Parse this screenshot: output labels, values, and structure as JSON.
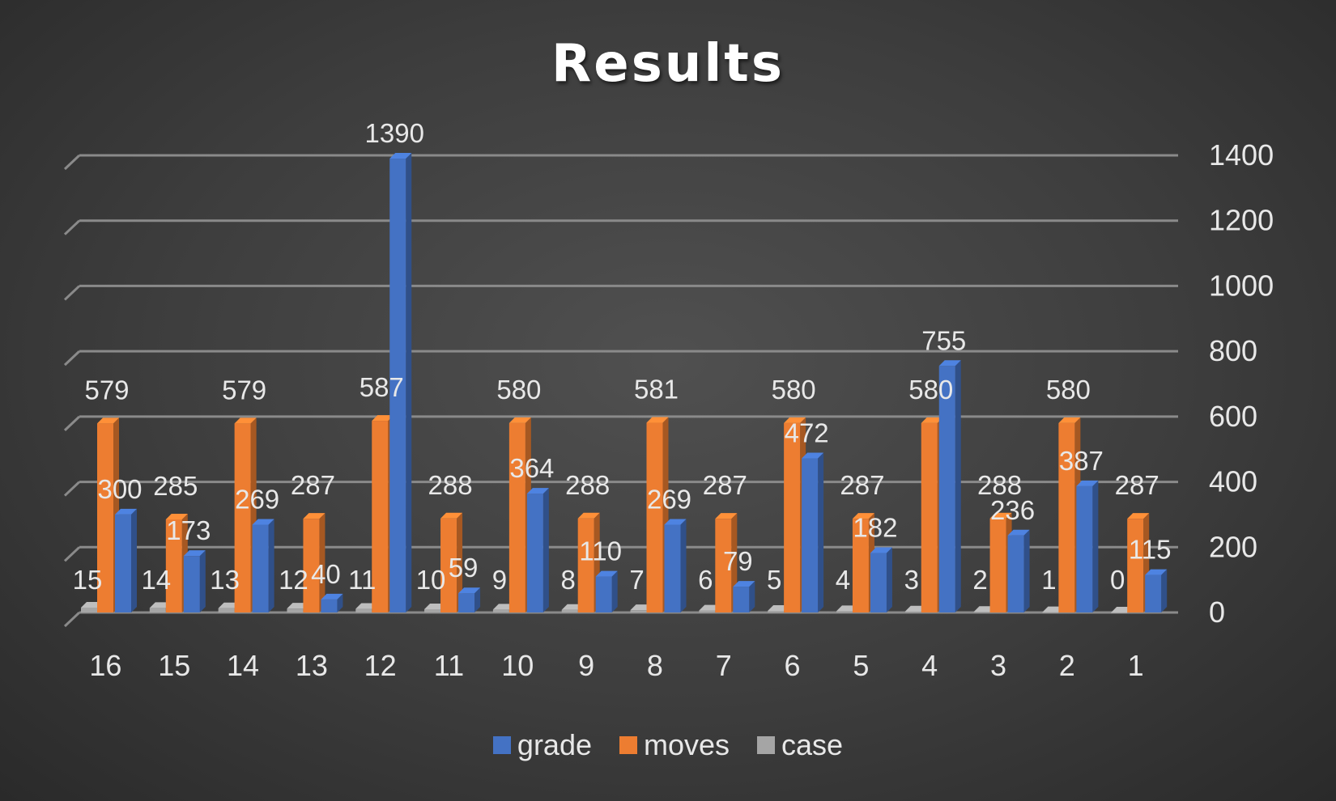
{
  "chart_data": {
    "type": "bar",
    "title": "Results",
    "xlabel": "",
    "ylabel": "",
    "ylim": [
      0,
      1400
    ],
    "yticks": [
      0,
      200,
      400,
      600,
      800,
      1000,
      1200,
      1400
    ],
    "grid": true,
    "legend_position": "bottom",
    "categories": [
      "16",
      "15",
      "14",
      "13",
      "12",
      "11",
      "10",
      "9",
      "8",
      "7",
      "6",
      "5",
      "4",
      "3",
      "2",
      "1"
    ],
    "series": [
      {
        "name": "grade",
        "color": "#4472c4",
        "values": [
          300,
          173,
          269,
          40,
          1390,
          59,
          364,
          110,
          269,
          79,
          472,
          182,
          755,
          236,
          387,
          115
        ]
      },
      {
        "name": "moves",
        "color": "#ed7d31",
        "values": [
          579,
          285,
          579,
          287,
          587,
          288,
          580,
          288,
          581,
          287,
          580,
          287,
          580,
          288,
          580,
          287
        ]
      },
      {
        "name": "case",
        "color": "#a5a5a5",
        "values": [
          15,
          14,
          13,
          12,
          11,
          10,
          9,
          8,
          7,
          6,
          5,
          4,
          3,
          2,
          1,
          0
        ]
      }
    ]
  }
}
